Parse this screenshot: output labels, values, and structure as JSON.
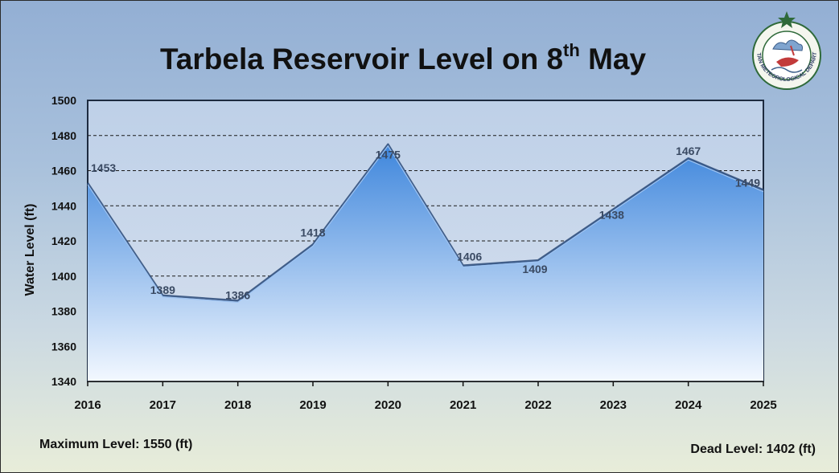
{
  "title_text": "Tarbela Reservoir Level on 8",
  "title_sup": "th",
  "title_end": " May",
  "notes": {
    "max_level": "Maximum Level: 1550 (ft)",
    "dead_level": "Dead Level: 1402 (ft)"
  },
  "logo": {
    "top_text": "PAKISTAN METEOROLOGICAL DEPARTMENT",
    "icon": "pmd-emblem-icon"
  },
  "colors": {
    "area_top": "#3e86dc",
    "area_bottom": "#f3f8ff",
    "line": "#2c4a78",
    "label": "#3a4a63"
  },
  "chart_data": {
    "type": "area",
    "title": "Tarbela Reservoir Level on 8th May",
    "xlabel": "",
    "ylabel": "Water Level (ft)",
    "categories": [
      "2016",
      "2017",
      "2018",
      "2019",
      "2020",
      "2021",
      "2022",
      "2023",
      "2024",
      "2025"
    ],
    "values": [
      1453,
      1389,
      1386,
      1418,
      1475,
      1406,
      1409,
      1438,
      1467,
      1449
    ],
    "data_labels": [
      "1453",
      "1389",
      "1386",
      "1418",
      "1475",
      "1406",
      "1409",
      "1438",
      "1467",
      "1449"
    ],
    "ylim": [
      1340,
      1500
    ],
    "yticks": [
      1340,
      1360,
      1380,
      1400,
      1420,
      1440,
      1460,
      1480,
      1500
    ],
    "grid": "dashed horizontal",
    "legend": "none"
  }
}
